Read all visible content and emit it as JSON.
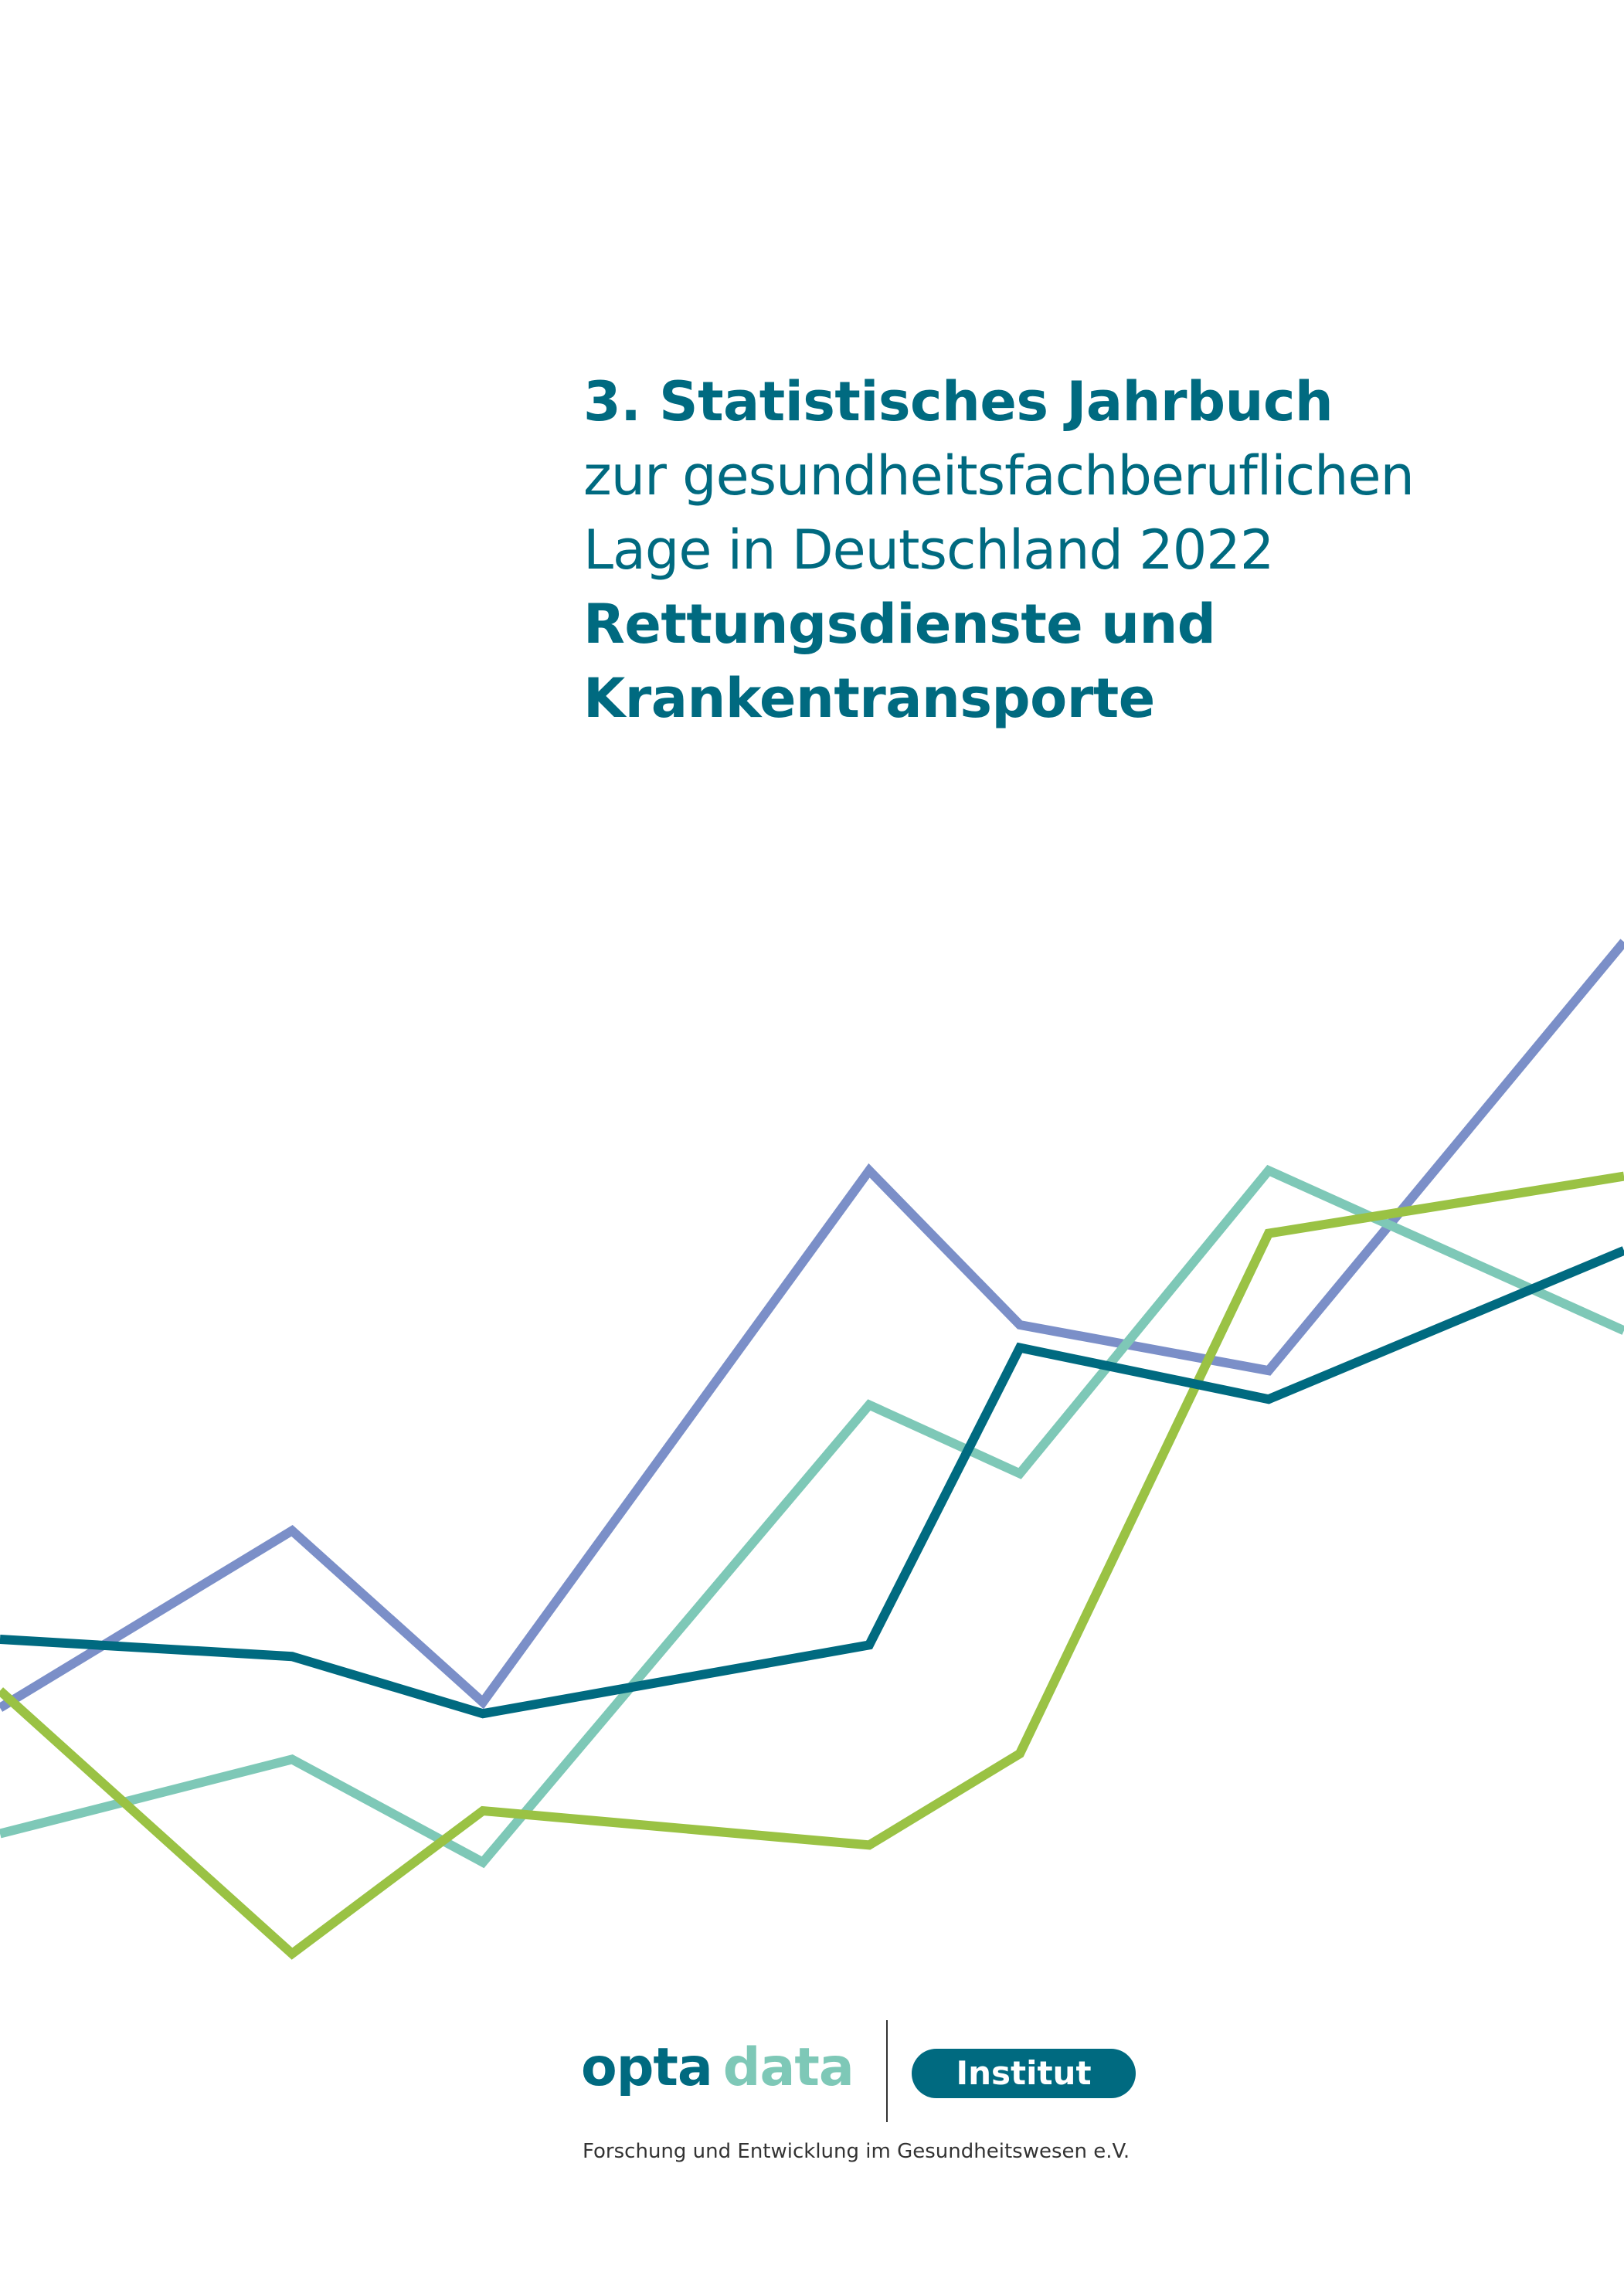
{
  "title": {
    "line1": "3. Statistisches Jahrbuch",
    "line2": "zur gesundheitsfachberuflichen",
    "line3": "Lage in Deutschland 2022",
    "line4": "Rettungsdienste und",
    "line5": "Krankentransporte",
    "color": "#006a80"
  },
  "chart_data": {
    "type": "line",
    "x": [
      0,
      1,
      2,
      3,
      4,
      5,
      6
    ],
    "series": [
      {
        "color": "#7b8fc8",
        "values": [
          5.8,
          8.9,
          5.9,
          15.2,
          12.5,
          11.7,
          19.2
        ]
      },
      {
        "color": "#7ec8b7",
        "values": [
          3.6,
          4.9,
          3.1,
          11.1,
          9.9,
          15.2,
          12.4
        ]
      },
      {
        "color": "#9ac244",
        "values": [
          6.1,
          1.5,
          4.0,
          3.4,
          5.0,
          14.1,
          15.1
        ]
      },
      {
        "color": "#006a80",
        "values": [
          7.0,
          6.7,
          5.7,
          6.9,
          12.1,
          11.2,
          13.8
        ]
      }
    ],
    "ylim": [
      0,
      20
    ],
    "grid": false,
    "legend": "none"
  },
  "logo": {
    "word1": "opta",
    "word2": "data",
    "word1_color": "#006a80",
    "word2_color": "#7ec8b7",
    "badge": "Institut",
    "badge_color": "#006a80"
  },
  "tagline": "Forschung und Entwicklung im Gesundheitswesen e.V."
}
